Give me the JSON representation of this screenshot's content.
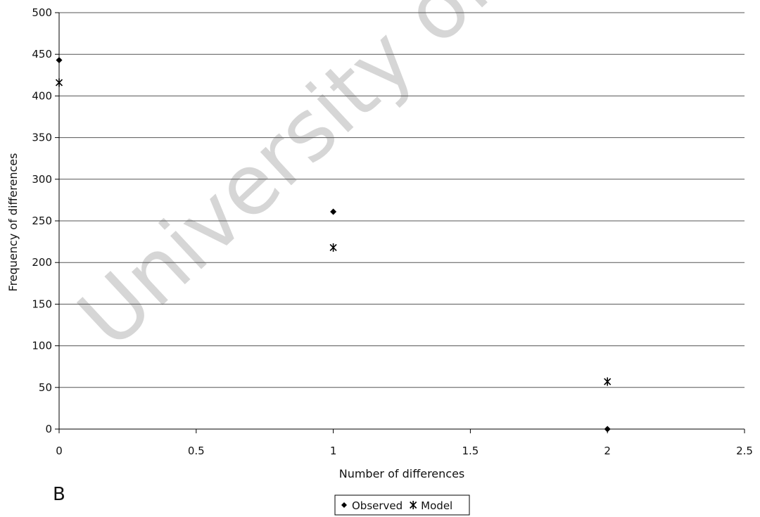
{
  "chart_data": {
    "type": "scatter",
    "title": "",
    "xlabel": "Number of differences",
    "ylabel": "Frequency of differences",
    "xlim": [
      0,
      2.5
    ],
    "ylim": [
      0,
      500
    ],
    "x_ticks": [
      0,
      0.5,
      1,
      1.5,
      2,
      2.5
    ],
    "y_ticks": [
      0,
      50,
      100,
      150,
      200,
      250,
      300,
      350,
      400,
      450,
      500
    ],
    "x_tick_labels": [
      "0",
      "0.5",
      "1",
      "1.5",
      "2",
      "2.5"
    ],
    "y_tick_labels": [
      "0",
      "50",
      "100",
      "150",
      "200",
      "250",
      "300",
      "350",
      "400",
      "450",
      "500"
    ],
    "grid": "horizontal",
    "legend_position": "bottom-center",
    "series": [
      {
        "name": "Observed",
        "marker": "diamond",
        "color": "#000000",
        "points": [
          {
            "x": 0,
            "y": 443
          },
          {
            "x": 1,
            "y": 261
          },
          {
            "x": 2,
            "y": 0
          }
        ]
      },
      {
        "name": "Model",
        "marker": "asterisk",
        "color": "#000000",
        "points": [
          {
            "x": 0,
            "y": 416
          },
          {
            "x": 1,
            "y": 218
          },
          {
            "x": 2,
            "y": 57
          }
        ]
      }
    ]
  },
  "panel_label": "B",
  "watermark": "University of Cape Town"
}
